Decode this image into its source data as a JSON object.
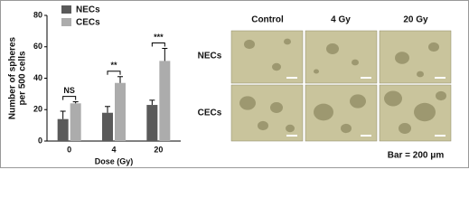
{
  "chart_data": {
    "type": "bar",
    "ylabel": [
      "Number of spheres",
      "per 500 cells"
    ],
    "xlabel": "Dose (Gy)",
    "categories": [
      "0",
      "4",
      "20"
    ],
    "series": [
      {
        "name": "NECs",
        "color": "#5a5a5a",
        "values": [
          14,
          18,
          23
        ],
        "errors": [
          5,
          4,
          3
        ]
      },
      {
        "name": "CECs",
        "color": "#acacac",
        "values": [
          24,
          37,
          51
        ],
        "errors": [
          1,
          4,
          8
        ]
      }
    ],
    "annotations": [
      "NS",
      "**",
      "***"
    ],
    "ylim": [
      0,
      80
    ],
    "yticks": [
      0,
      20,
      40,
      60,
      80
    ]
  },
  "image_panel": {
    "columns": [
      "Control",
      "4 Gy",
      "20 Gy"
    ],
    "rows": [
      "NECs",
      "CECs"
    ],
    "caption": "Bar = 200 μm"
  }
}
